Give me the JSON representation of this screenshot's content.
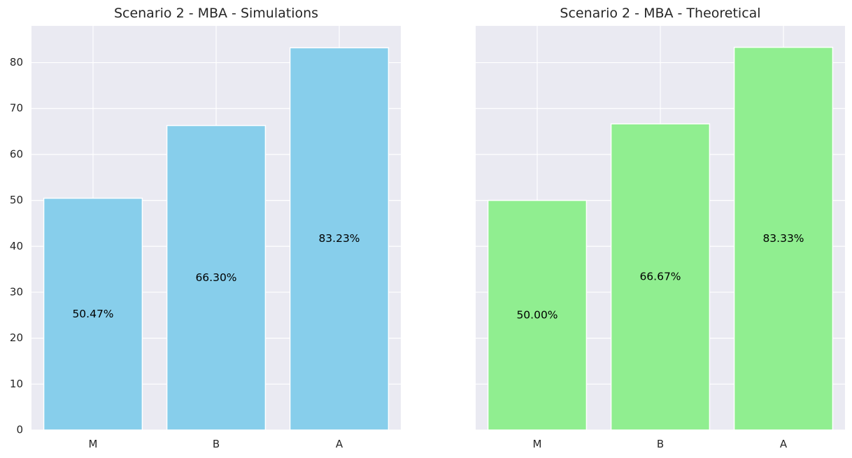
{
  "chart_data": [
    {
      "type": "bar",
      "title": "Scenario 2 - MBA - Simulations",
      "categories": [
        "M",
        "B",
        "A"
      ],
      "values": [
        50.47,
        66.3,
        83.23
      ],
      "bar_labels": [
        "50.47%",
        "66.30%",
        "83.23%"
      ],
      "color": "#87ceeb",
      "ylim": [
        0,
        88
      ],
      "yticks": [
        0,
        10,
        20,
        30,
        40,
        50,
        60,
        70,
        80
      ],
      "ytick_labels_shown": true,
      "grid": true
    },
    {
      "type": "bar",
      "title": "Scenario 2 - MBA - Theoretical",
      "categories": [
        "M",
        "B",
        "A"
      ],
      "values": [
        50.0,
        66.67,
        83.33
      ],
      "bar_labels": [
        "50.00%",
        "66.67%",
        "83.33%"
      ],
      "color": "#90ee90",
      "ylim": [
        0,
        88
      ],
      "yticks": [
        0,
        10,
        20,
        30,
        40,
        50,
        60,
        70,
        80
      ],
      "ytick_labels_shown": false,
      "grid": true
    }
  ],
  "colors": {
    "plot_background": "#eaeaf2",
    "grid": "#ffffff",
    "text": "#262626"
  }
}
